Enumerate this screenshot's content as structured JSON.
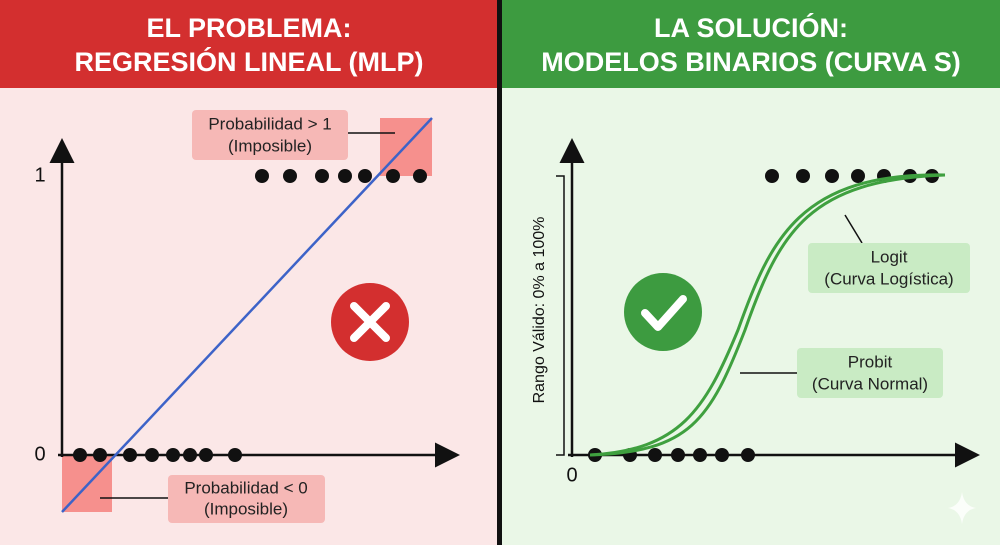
{
  "left": {
    "title": [
      "EL PROBLEMA:",
      "REGRESIÓN LINEAL (MLP)"
    ],
    "axis_labels": {
      "top": "1",
      "bottom": "0"
    },
    "annotations": [
      {
        "line1": "Probabilidad > 1",
        "line2": "(Imposible)"
      },
      {
        "line1": "Probabilidad < 0",
        "line2": "(Imposible)"
      }
    ]
  },
  "right": {
    "title": [
      "LA SOLUCIÓN:",
      "MODELOS BINARIOS (CURVA S)"
    ],
    "axis_label": "Rango Válido: 0% a 100%",
    "origin_label": "0",
    "annotations": [
      {
        "line1": "Logit",
        "line2": "(Curva Logística)"
      },
      {
        "line1": "Probit",
        "line2": "(Curva Normal)"
      }
    ]
  }
}
